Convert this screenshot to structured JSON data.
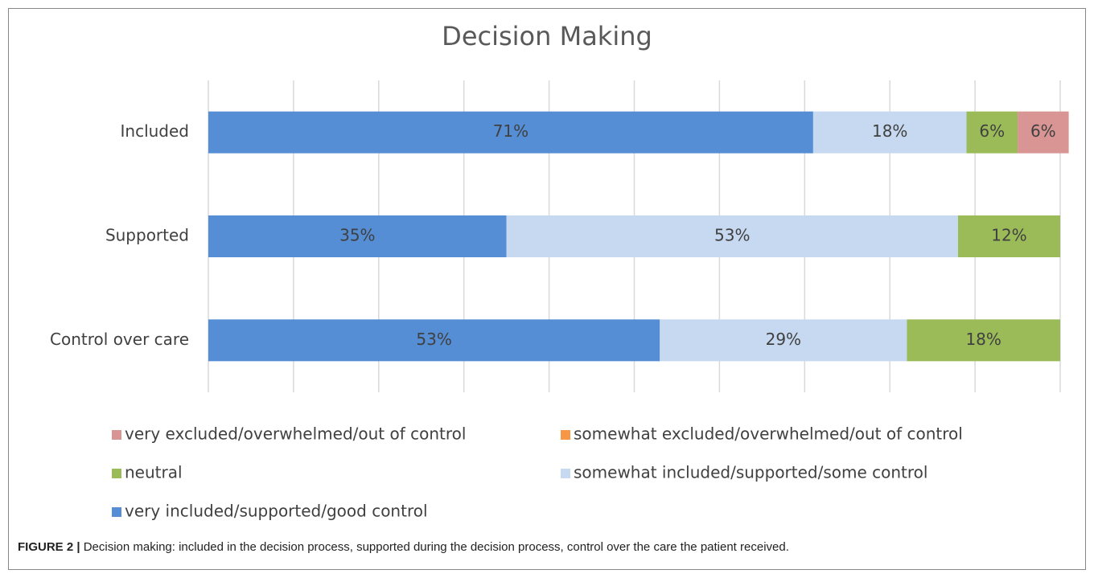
{
  "chart_data": {
    "type": "stacked_barh",
    "title": "Decision Making",
    "categories": [
      "Included",
      "Supported",
      "Control over care"
    ],
    "series": [
      {
        "name": "very included/supported/good control",
        "color": "#558ed5",
        "values": [
          71,
          35,
          53
        ],
        "value_labels": [
          "71%",
          "35%",
          "53%"
        ]
      },
      {
        "name": "somewhat included/supported/some control",
        "color": "#c6d9f1",
        "values": [
          18,
          53,
          29
        ],
        "value_labels": [
          "18%",
          "53%",
          "29%"
        ]
      },
      {
        "name": "neutral",
        "color": "#9bbb59",
        "values": [
          6,
          12,
          18
        ],
        "value_labels": [
          "6%",
          "12%",
          "18%"
        ]
      },
      {
        "name": "somewhat excluded/overwhelmed/out of control",
        "color": "#f79646",
        "values": [
          0,
          0,
          0
        ]
      },
      {
        "name": "very excluded/overwhelmed/out of control",
        "color": "#d99594",
        "values": [
          6,
          0,
          0
        ],
        "value_labels": [
          "6%",
          null,
          null
        ]
      }
    ],
    "xlim": [
      0,
      100
    ],
    "xticks": [
      0,
      10,
      20,
      30,
      40,
      50,
      60,
      70,
      80,
      90,
      100
    ],
    "grid": true
  },
  "caption": {
    "label": "FIGURE 2 |",
    "text": "Decision making: included in the decision process, supported during the decision process, control over the care the patient received."
  }
}
